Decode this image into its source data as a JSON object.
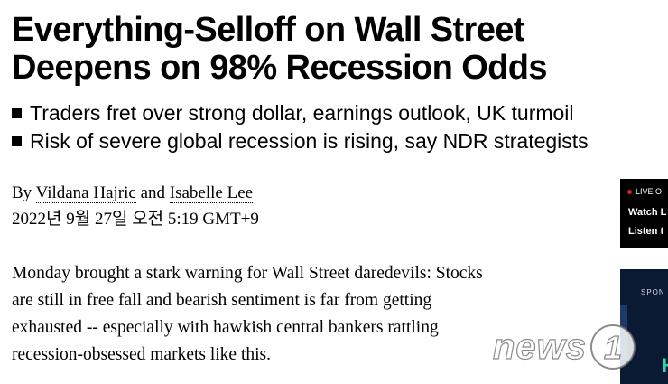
{
  "article": {
    "headline_line1": "Everything-Selloff on Wall Street",
    "headline_line2": "Deepens on 98% Recession Odds",
    "bullets": [
      "Traders fret over strong dollar, earnings outlook, UK turmoil",
      "Risk of severe global recession is rising, say NDR strategists"
    ],
    "byline_prefix": "By",
    "author1": "Vildana Hajric",
    "byline_and": "and",
    "author2": "Isabelle Lee",
    "timestamp": "2022년 9월 27일 오전 5:19 GMT+9",
    "body_lines": [
      "Monday brought a stark warning for Wall Street daredevils: Stocks",
      "are still in free fall and bearish sentiment is far from getting",
      "exhausted -- especially with hawkish central bankers rattling",
      "recession-obsessed markets like this."
    ]
  },
  "live_widget": {
    "live_label": "LIVE O",
    "line1": "Watch L",
    "line2": "Listen t"
  },
  "ad_widget": {
    "sponsored_label": "SPON",
    "big_text": "Hi"
  },
  "watermark": {
    "text": "news",
    "number": "1"
  },
  "colors": {
    "live_dot": "#e01e1e",
    "ad_background": "#0b1a33",
    "ad_accent": "#2fd3a8"
  }
}
